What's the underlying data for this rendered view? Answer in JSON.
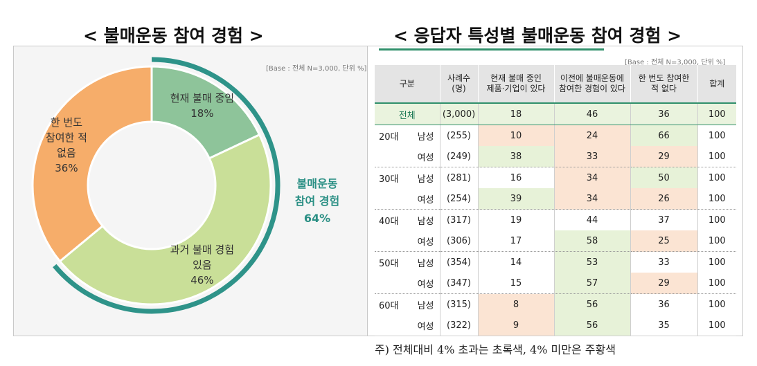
{
  "titles": {
    "left": "< 불매운동 참여 경험 >",
    "right": "< 응답자 특성별 불매운동 참여 경험 >"
  },
  "base_note": "[Base : 전체 N=3,000, 단위 %]",
  "colors": {
    "current": "#8ec49a",
    "past": "#c9df98",
    "never": "#f6ad6a",
    "arc": "#2e9389",
    "accent_green": "#2f8f6a",
    "green_cell": "#e7f2d8",
    "orange_cell": "#fbe4d3"
  },
  "chart_data": [
    {
      "type": "pie",
      "title": "< 불매운동 참여 경험 >",
      "unit": "%",
      "slices": [
        {
          "key": "current",
          "label_lines": [
            "현재 불매 중임",
            "18%"
          ],
          "value": 18
        },
        {
          "key": "past",
          "label_lines": [
            "과거 불매 경험",
            "있음",
            "46%"
          ],
          "value": 46
        },
        {
          "key": "never",
          "label_lines": [
            "한 번도",
            "참여한 적",
            "없음",
            "36%"
          ],
          "value": 36
        }
      ],
      "annotation": {
        "label_lines": [
          "불매운동",
          "참여 경험",
          "64%"
        ],
        "value": 64
      }
    },
    {
      "type": "table",
      "title": "< 응답자 특성별 불매운동 참여 경험 >",
      "columns": [
        {
          "lines": [
            "구분"
          ]
        },
        {
          "lines": [
            "사례수",
            "(명)"
          ]
        },
        {
          "lines": [
            "현재 불매 중인",
            "제품·기업이 있다"
          ]
        },
        {
          "lines": [
            "이전에 불매운동에",
            "참여한 경험이 있다"
          ]
        },
        {
          "lines": [
            "한 번도 참여한",
            "적 없다"
          ]
        },
        {
          "lines": [
            "합계"
          ]
        }
      ],
      "total": {
        "label": "전체",
        "n": "(3,000)",
        "current": 18,
        "past": 46,
        "never": 36,
        "sum": 100
      },
      "groups": [
        {
          "age": "20대",
          "rows": [
            {
              "gender": "남성",
              "n": "(255)",
              "current": 10,
              "past": 24,
              "never": 66,
              "sum": 100,
              "hl": [
                "o",
                "o",
                "g"
              ]
            },
            {
              "gender": "여성",
              "n": "(249)",
              "current": 38,
              "past": 33,
              "never": 29,
              "sum": 100,
              "hl": [
                "g",
                "o",
                "o"
              ]
            }
          ]
        },
        {
          "age": "30대",
          "rows": [
            {
              "gender": "남성",
              "n": "(281)",
              "current": 16,
              "past": 34,
              "never": 50,
              "sum": 100,
              "hl": [
                "",
                "o",
                "g"
              ]
            },
            {
              "gender": "여성",
              "n": "(254)",
              "current": 39,
              "past": 34,
              "never": 26,
              "sum": 100,
              "hl": [
                "g",
                "o",
                "o"
              ]
            }
          ]
        },
        {
          "age": "40대",
          "rows": [
            {
              "gender": "남성",
              "n": "(317)",
              "current": 19,
              "past": 44,
              "never": 37,
              "sum": 100,
              "hl": [
                "",
                "",
                ""
              ]
            },
            {
              "gender": "여성",
              "n": "(306)",
              "current": 17,
              "past": 58,
              "never": 25,
              "sum": 100,
              "hl": [
                "",
                "g",
                "o"
              ]
            }
          ]
        },
        {
          "age": "50대",
          "rows": [
            {
              "gender": "남성",
              "n": "(354)",
              "current": 14,
              "past": 53,
              "never": 33,
              "sum": 100,
              "hl": [
                "",
                "g",
                ""
              ]
            },
            {
              "gender": "여성",
              "n": "(347)",
              "current": 15,
              "past": 57,
              "never": 29,
              "sum": 100,
              "hl": [
                "",
                "g",
                "o"
              ]
            }
          ]
        },
        {
          "age": "60대",
          "rows": [
            {
              "gender": "남성",
              "n": "(315)",
              "current": 8,
              "past": 56,
              "never": 36,
              "sum": 100,
              "hl": [
                "o",
                "g",
                ""
              ]
            },
            {
              "gender": "여성",
              "n": "(322)",
              "current": 9,
              "past": 56,
              "never": 35,
              "sum": 100,
              "hl": [
                "o",
                "g",
                ""
              ]
            }
          ]
        }
      ]
    }
  ],
  "footnote": "주) 전체대비 4% 초과는 초록색, 4% 미만은 주황색"
}
